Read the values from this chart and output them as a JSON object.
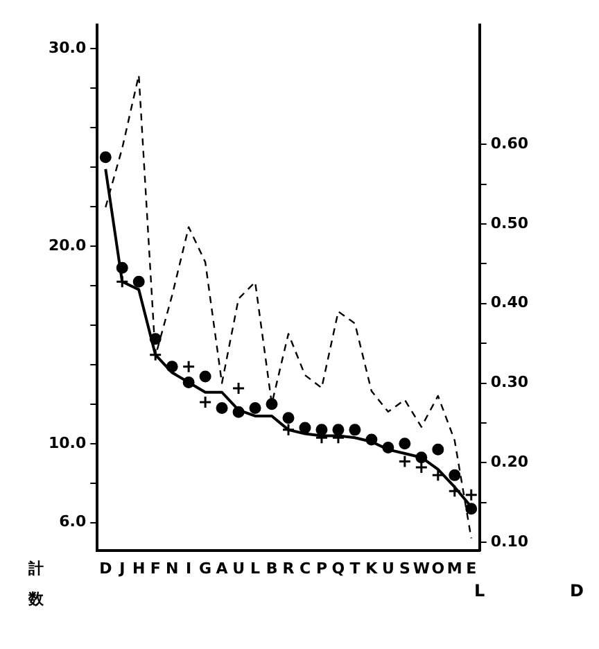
{
  "chart_data": {
    "type": "line",
    "xlabel": "計数",
    "categories": [
      "D",
      "J",
      "H",
      "F",
      "N",
      "I",
      "G",
      "A",
      "U",
      "L",
      "B",
      "R",
      "C",
      "P",
      "Q",
      "T",
      "K",
      "U",
      "S",
      "W",
      "O",
      "M",
      "E"
    ],
    "series": [
      {
        "type": "line",
        "color": "#000000",
        "line_style": "solid",
        "marker": "none",
        "values": [
          23.9,
          18.2,
          17.8,
          14.5,
          13.6,
          13.1,
          12.6,
          12.6,
          11.7,
          11.4,
          11.4,
          10.7,
          10.5,
          10.4,
          10.4,
          10.3,
          10.1,
          9.7,
          9.5,
          9.3,
          8.7,
          7.8,
          6.8
        ]
      },
      {
        "type": "scatter",
        "color": "#000000",
        "marker": "circle",
        "values": [
          24.5,
          18.9,
          18.2,
          15.3,
          13.9,
          13.1,
          13.4,
          11.8,
          11.6,
          11.8,
          12.0,
          11.3,
          10.8,
          10.7,
          10.7,
          10.7,
          10.2,
          9.8,
          10.0,
          9.3,
          9.7,
          8.4,
          6.7
        ]
      },
      {
        "type": "scatter",
        "color": "#000000",
        "marker": "cross",
        "values": [
          null,
          18.2,
          null,
          14.5,
          null,
          13.9,
          12.1,
          null,
          12.8,
          null,
          null,
          10.7,
          null,
          10.3,
          10.3,
          null,
          null,
          null,
          9.1,
          8.8,
          8.4,
          7.6,
          7.4
        ]
      },
      {
        "type": "line",
        "color": "#000000",
        "line_style": "dashed",
        "marker": "none",
        "axis": "y2",
        "values": [
          0.521,
          0.595,
          0.687,
          0.334,
          0.41,
          0.496,
          0.452,
          0.3,
          0.406,
          0.427,
          0.274,
          0.362,
          0.31,
          0.294,
          0.39,
          0.375,
          0.29,
          0.264,
          0.279,
          0.245,
          0.284,
          0.228,
          0.105
        ]
      }
    ],
    "ylim": [
      4.6,
      31.2
    ],
    "yticks": [
      {
        "value": 6,
        "label": "6.0"
      },
      {
        "value": 8,
        "label": null
      },
      {
        "value": 10,
        "label": "10.0"
      },
      {
        "value": 12,
        "label": null
      },
      {
        "value": 14,
        "label": null
      },
      {
        "value": 16,
        "label": null
      },
      {
        "value": 18,
        "label": null
      },
      {
        "value": 20,
        "label": "20.0"
      },
      {
        "value": 22,
        "label": null
      },
      {
        "value": 24,
        "label": null
      },
      {
        "value": 26,
        "label": null
      },
      {
        "value": 28,
        "label": null
      },
      {
        "value": 30,
        "label": "30.0"
      }
    ],
    "y2lim": [
      0.09,
      0.75
    ],
    "y2ticks": [
      {
        "value": 0.1,
        "label": "0.10"
      },
      {
        "value": 0.15,
        "label": null
      },
      {
        "value": 0.2,
        "label": "0.20"
      },
      {
        "value": 0.25,
        "label": null
      },
      {
        "value": 0.3,
        "label": "0.30"
      },
      {
        "value": 0.35,
        "label": null
      },
      {
        "value": 0.4,
        "label": "0.40"
      },
      {
        "value": 0.45,
        "label": null
      },
      {
        "value": 0.5,
        "label": "0.50"
      },
      {
        "value": 0.55,
        "label": null
      },
      {
        "value": 0.6,
        "label": "0.60"
      }
    ],
    "annotations": [
      "L",
      "D"
    ],
    "grid": false,
    "legend": false
  }
}
